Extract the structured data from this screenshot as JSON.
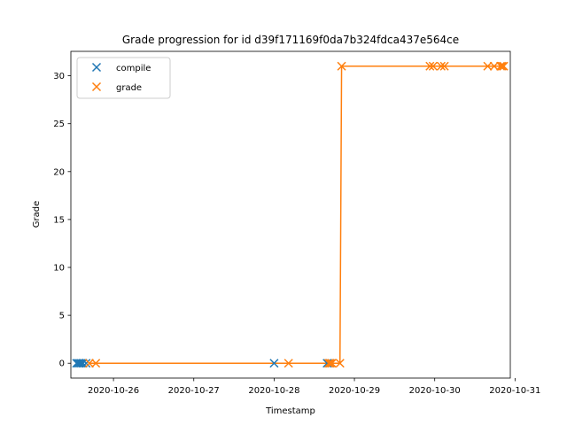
{
  "chart_data": {
    "type": "scatter",
    "title": "Grade progression for id d39f171169f0da7b324fdca437e564ce",
    "xlabel": "Timestamp",
    "ylabel": "Grade",
    "x_axis_type": "datetime",
    "xlim": [
      "2020-10-25T11:16",
      "2020-10-30T22:35"
    ],
    "ylim": [
      -1.55,
      32.55
    ],
    "x_ticks": [
      "2020-10-26",
      "2020-10-27",
      "2020-10-28",
      "2020-10-29",
      "2020-10-30",
      "2020-10-31"
    ],
    "y_ticks": [
      0,
      5,
      10,
      15,
      20,
      25,
      30
    ],
    "grid": false,
    "legend_position": "upper left",
    "series": [
      {
        "name": "compile",
        "color": "#1f77b4",
        "marker": "x",
        "line": false,
        "points": [
          {
            "x": "2020-10-25T12:58",
            "y": 0
          },
          {
            "x": "2020-10-25T13:26",
            "y": 0
          },
          {
            "x": "2020-10-25T13:55",
            "y": 0
          },
          {
            "x": "2020-10-25T14:24",
            "y": 0
          },
          {
            "x": "2020-10-25T14:53",
            "y": 0
          },
          {
            "x": "2020-10-25T15:50",
            "y": 0
          },
          {
            "x": "2020-10-28T00:00",
            "y": 0
          },
          {
            "x": "2020-10-28T15:50",
            "y": 0
          },
          {
            "x": "2020-10-28T16:19",
            "y": 0
          },
          {
            "x": "2020-10-28T16:48",
            "y": 0
          }
        ]
      },
      {
        "name": "grade",
        "color": "#ff7f0e",
        "marker": "x",
        "line": true,
        "points": [
          {
            "x": "2020-10-25T16:48",
            "y": 0
          },
          {
            "x": "2020-10-25T18:43",
            "y": 0
          },
          {
            "x": "2020-10-28T04:19",
            "y": 0
          },
          {
            "x": "2020-10-28T16:19",
            "y": 0
          },
          {
            "x": "2020-10-28T16:48",
            "y": 0
          },
          {
            "x": "2020-10-28T17:17",
            "y": 0
          },
          {
            "x": "2020-10-28T19:41",
            "y": 0
          },
          {
            "x": "2020-10-28T20:10",
            "y": 31
          },
          {
            "x": "2020-10-29T22:34",
            "y": 31
          },
          {
            "x": "2020-10-29T23:31",
            "y": 31
          },
          {
            "x": "2020-10-30T01:55",
            "y": 31
          },
          {
            "x": "2020-10-30T02:53",
            "y": 31
          },
          {
            "x": "2020-10-30T15:50",
            "y": 31
          },
          {
            "x": "2020-10-30T17:46",
            "y": 31
          },
          {
            "x": "2020-10-30T19:41",
            "y": 31
          },
          {
            "x": "2020-10-30T20:10",
            "y": 31
          },
          {
            "x": "2020-10-30T20:38",
            "y": 31
          }
        ]
      }
    ]
  }
}
